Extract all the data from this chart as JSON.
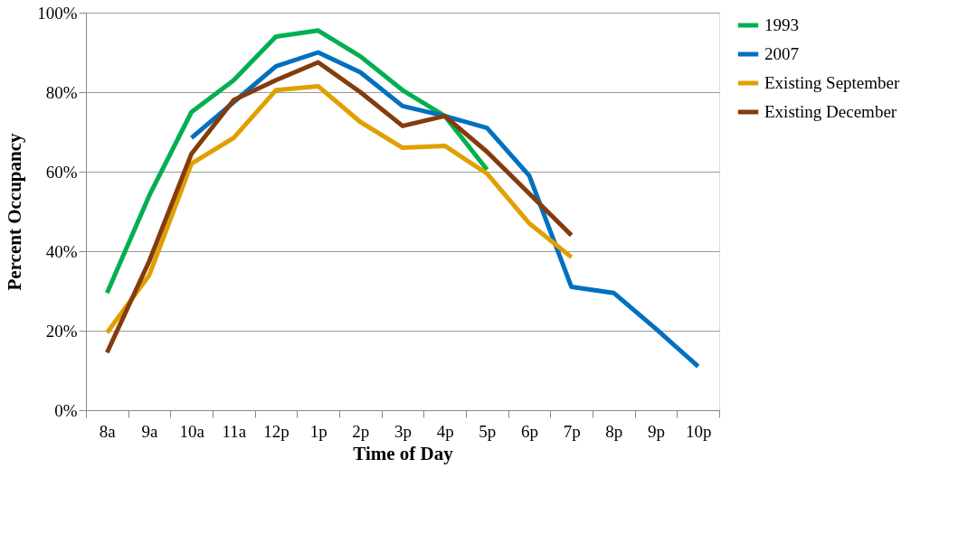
{
  "chart_data": {
    "type": "line",
    "xlabel": "Time of Day",
    "ylabel": "Percent Occupancy",
    "categories": [
      "8a",
      "9a",
      "10a",
      "11a",
      "12p",
      "1p",
      "2p",
      "3p",
      "4p",
      "5p",
      "6p",
      "7p",
      "8p",
      "9p",
      "10p"
    ],
    "series": [
      {
        "name": "1993",
        "color": "#00b050",
        "values": [
          29.5,
          54,
          75,
          83,
          94,
          95.5,
          89,
          80.5,
          74,
          60.5,
          null,
          null,
          null,
          null,
          null
        ]
      },
      {
        "name": "2007",
        "color": "#0070c0",
        "values": [
          null,
          null,
          68.5,
          77.5,
          86.5,
          90,
          85,
          76.5,
          74,
          71,
          59,
          31,
          29.5,
          20.5,
          11
        ]
      },
      {
        "name": "Existing September",
        "color": "#e0a000",
        "values": [
          19.5,
          34,
          62,
          68.5,
          80.5,
          81.5,
          72.5,
          66,
          66.5,
          59.5,
          47,
          38.5,
          null,
          null,
          null
        ]
      },
      {
        "name": "Existing December",
        "color": "#843c0c",
        "values": [
          14.5,
          37.5,
          64.5,
          78,
          83,
          87.5,
          80,
          71.5,
          74,
          65,
          54.5,
          44,
          null,
          null,
          null
        ]
      }
    ],
    "ylim": [
      0,
      100
    ],
    "yticks": [
      {
        "value": 0,
        "label": "0%"
      },
      {
        "value": 20,
        "label": "20%"
      },
      {
        "value": 40,
        "label": "40%"
      },
      {
        "value": 60,
        "label": "60%"
      },
      {
        "value": 80,
        "label": "80%"
      },
      {
        "value": 100,
        "label": "100%"
      }
    ],
    "grid": "y",
    "legend": "right",
    "marker": "none",
    "line_style": "solid"
  }
}
